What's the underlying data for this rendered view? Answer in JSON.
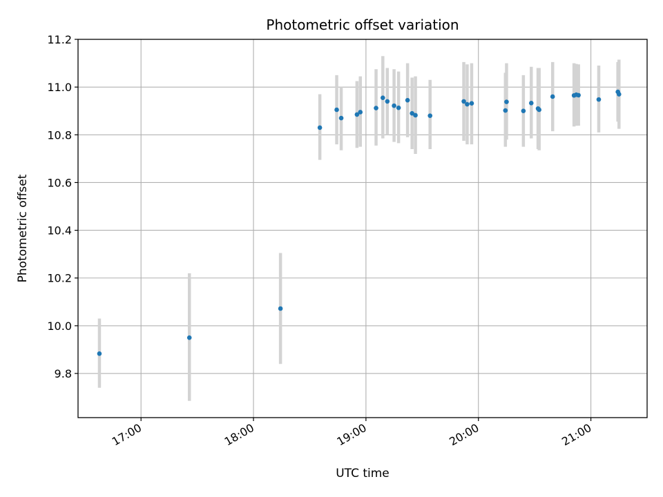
{
  "chart_data": {
    "type": "scatter",
    "title": "Photometric offset variation",
    "xlabel": "UTC time",
    "ylabel": "Photometric offset",
    "x_unit": "UTC time (hours)",
    "xlim": [
      16.44,
      21.5
    ],
    "ylim": [
      9.615,
      11.2
    ],
    "x_ticks": [
      {
        "value": 17,
        "label": "17:00"
      },
      {
        "value": 18,
        "label": "18:00"
      },
      {
        "value": 19,
        "label": "19:00"
      },
      {
        "value": 20,
        "label": "20:00"
      },
      {
        "value": 21,
        "label": "21:00"
      }
    ],
    "y_ticks": [
      {
        "value": 9.8,
        "label": "9.8"
      },
      {
        "value": 10.0,
        "label": "10.0"
      },
      {
        "value": 10.2,
        "label": "10.2"
      },
      {
        "value": 10.4,
        "label": "10.4"
      },
      {
        "value": 10.6,
        "label": "10.6"
      },
      {
        "value": 10.8,
        "label": "10.8"
      },
      {
        "value": 11.0,
        "label": "11.0"
      },
      {
        "value": 11.2,
        "label": "11.2"
      }
    ],
    "grid": true,
    "marker_color": "#1f77b4",
    "errorbar_color": "#d3d3d3",
    "points": [
      {
        "x": 16.63,
        "y": 9.883,
        "lo": 9.74,
        "hi": 10.03
      },
      {
        "x": 17.43,
        "y": 9.95,
        "lo": 9.685,
        "hi": 10.22
      },
      {
        "x": 18.24,
        "y": 10.072,
        "lo": 9.84,
        "hi": 10.305
      },
      {
        "x": 18.59,
        "y": 10.83,
        "lo": 10.695,
        "hi": 10.97
      },
      {
        "x": 18.74,
        "y": 10.905,
        "lo": 10.76,
        "hi": 11.05
      },
      {
        "x": 18.78,
        "y": 10.87,
        "lo": 10.735,
        "hi": 11.0
      },
      {
        "x": 18.92,
        "y": 10.885,
        "lo": 10.745,
        "hi": 11.025
      },
      {
        "x": 18.95,
        "y": 10.895,
        "lo": 10.75,
        "hi": 11.045
      },
      {
        "x": 19.09,
        "y": 10.912,
        "lo": 10.755,
        "hi": 11.075
      },
      {
        "x": 19.15,
        "y": 10.955,
        "lo": 10.785,
        "hi": 11.13
      },
      {
        "x": 19.19,
        "y": 10.94,
        "lo": 10.8,
        "hi": 11.08
      },
      {
        "x": 19.25,
        "y": 10.922,
        "lo": 10.77,
        "hi": 11.075
      },
      {
        "x": 19.29,
        "y": 10.913,
        "lo": 10.765,
        "hi": 11.065
      },
      {
        "x": 19.37,
        "y": 10.945,
        "lo": 10.79,
        "hi": 11.1
      },
      {
        "x": 19.41,
        "y": 10.89,
        "lo": 10.74,
        "hi": 11.04
      },
      {
        "x": 19.44,
        "y": 10.882,
        "lo": 10.72,
        "hi": 11.045
      },
      {
        "x": 19.57,
        "y": 10.88,
        "lo": 10.74,
        "hi": 11.03
      },
      {
        "x": 19.87,
        "y": 10.94,
        "lo": 10.775,
        "hi": 11.105
      },
      {
        "x": 19.9,
        "y": 10.928,
        "lo": 10.76,
        "hi": 11.095
      },
      {
        "x": 19.94,
        "y": 10.932,
        "lo": 10.76,
        "hi": 11.1
      },
      {
        "x": 20.24,
        "y": 10.902,
        "lo": 10.75,
        "hi": 11.06
      },
      {
        "x": 20.25,
        "y": 10.938,
        "lo": 10.78,
        "hi": 11.1
      },
      {
        "x": 20.4,
        "y": 10.9,
        "lo": 10.75,
        "hi": 11.05
      },
      {
        "x": 20.47,
        "y": 10.933,
        "lo": 10.785,
        "hi": 11.085
      },
      {
        "x": 20.53,
        "y": 10.91,
        "lo": 10.74,
        "hi": 11.08
      },
      {
        "x": 20.54,
        "y": 10.905,
        "lo": 10.735,
        "hi": 11.08
      },
      {
        "x": 20.66,
        "y": 10.96,
        "lo": 10.815,
        "hi": 11.105
      },
      {
        "x": 20.85,
        "y": 10.965,
        "lo": 10.835,
        "hi": 11.1
      },
      {
        "x": 20.87,
        "y": 10.968,
        "lo": 10.838,
        "hi": 11.097
      },
      {
        "x": 20.89,
        "y": 10.966,
        "lo": 10.838,
        "hi": 11.095
      },
      {
        "x": 21.07,
        "y": 10.948,
        "lo": 10.81,
        "hi": 11.09
      },
      {
        "x": 21.24,
        "y": 10.98,
        "lo": 10.855,
        "hi": 11.105
      },
      {
        "x": 21.25,
        "y": 10.97,
        "lo": 10.825,
        "hi": 11.115
      }
    ]
  }
}
